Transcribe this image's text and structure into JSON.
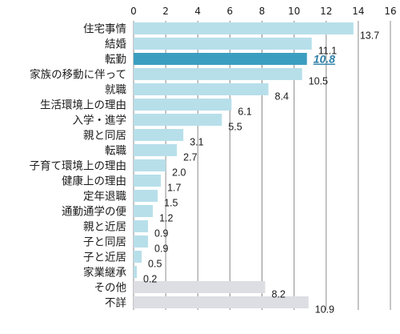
{
  "chart_data": {
    "type": "bar",
    "orientation": "horizontal",
    "categories": [
      "住宅事情",
      "結婚",
      "転勤",
      "家族の移動に伴って",
      "就職",
      "生活環境上の理由",
      "入学・進学",
      "親と同居",
      "転職",
      "子育て環境上の理由",
      "健康上の理由",
      "定年退職",
      "通勤通学の便",
      "親と近居",
      "子と同居",
      "子と近居",
      "家業継承",
      "その他",
      "不詳"
    ],
    "values": [
      13.7,
      11.1,
      10.8,
      10.5,
      8.4,
      6.1,
      5.5,
      3.1,
      2.7,
      2.0,
      1.7,
      1.5,
      1.2,
      0.9,
      0.9,
      0.5,
      0.2,
      8.2,
      10.9
    ],
    "value_labels": [
      "13.7",
      "11.1",
      "10.8",
      "10.5",
      "8.4",
      "6.1",
      "5.5",
      "3.1",
      "2.7",
      "2.0",
      "1.7",
      "1.5",
      "1.2",
      "0.9",
      "0.9",
      "0.5",
      "0.2",
      "8.2",
      "10.9"
    ],
    "highlight_category": "転勤",
    "xlim": [
      0,
      16
    ],
    "xticks": [
      "0",
      "2",
      "4",
      "6",
      "8",
      "10",
      "12",
      "14",
      "16"
    ],
    "x_axis_position": "top",
    "grid": true,
    "legend": "none",
    "title": "",
    "xlabel": "",
    "ylabel": "",
    "colors": {
      "bar": "#b7dfea",
      "highlight": "#3b9ec0",
      "highlight_text": "#2e7fa8",
      "other": "#dcdee3",
      "grid": "#8c8c8c"
    },
    "gray_categories": [
      "その他",
      "不詳"
    ]
  }
}
